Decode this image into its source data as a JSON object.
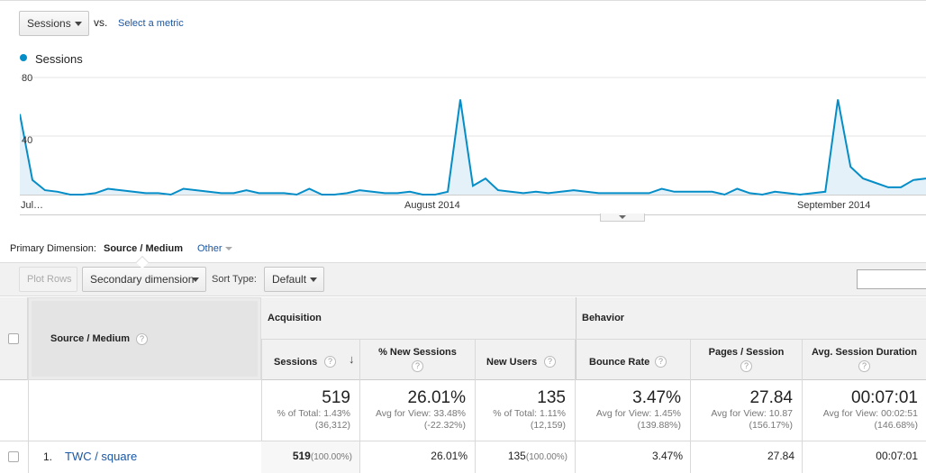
{
  "controls": {
    "metric_select": "Sessions",
    "vs_label": "vs.",
    "select_metric_link": "Select a metric"
  },
  "legend": {
    "series_label": "Sessions",
    "color": "#058dc7"
  },
  "chart_data": {
    "type": "area",
    "series": [
      {
        "name": "Sessions",
        "color": "#058dc7"
      }
    ],
    "y_ticks": [
      "80",
      "40"
    ],
    "ylim": [
      0,
      80
    ],
    "x_labels": [
      "Jul…",
      "August 2014",
      "September 2014"
    ],
    "values": [
      55,
      10,
      3,
      2,
      0,
      0,
      1,
      4,
      3,
      2,
      1,
      1,
      0,
      4,
      3,
      2,
      1,
      1,
      3,
      1,
      1,
      1,
      0,
      4,
      0,
      0,
      1,
      3,
      2,
      1,
      1,
      2,
      0,
      0,
      2,
      65,
      6,
      11,
      3,
      2,
      1,
      2,
      1,
      2,
      3,
      2,
      1,
      1,
      1,
      1,
      1,
      4,
      2,
      2,
      2,
      2,
      0,
      4,
      1,
      0,
      2,
      1,
      0,
      1,
      2,
      65,
      19,
      11,
      8,
      5,
      5,
      10,
      11
    ]
  },
  "primary_dimension": {
    "label": "Primary Dimension:",
    "value": "Source / Medium",
    "other": "Other"
  },
  "toolbar": {
    "plot_rows": "Plot Rows",
    "secondary_dimension": "Secondary dimension",
    "sort_type_label": "Sort Type:",
    "sort_type_value": "Default"
  },
  "table": {
    "dimension_header": "Source / Medium",
    "group_acquisition": "Acquisition",
    "group_behavior": "Behavior",
    "columns": [
      "Sessions",
      "% New Sessions",
      "New Users",
      "Bounce Rate",
      "Pages / Session",
      "Avg. Session Duration"
    ],
    "totals": [
      {
        "value": "519",
        "sub1": "% of Total: 1.43%",
        "sub2": "(36,312)"
      },
      {
        "value": "26.01%",
        "sub1": "Avg for View: 33.48%",
        "sub2": "(-22.32%)"
      },
      {
        "value": "135",
        "sub1": "% of Total: 1.11%",
        "sub2": "(12,159)"
      },
      {
        "value": "3.47%",
        "sub1": "Avg for View: 1.45%",
        "sub2": "(139.88%)"
      },
      {
        "value": "27.84",
        "sub1": "Avg for View: 10.87",
        "sub2": "(156.17%)"
      },
      {
        "value": "00:07:01",
        "sub1": "Avg for View: 00:02:51",
        "sub2": "(146.68%)"
      }
    ],
    "row": {
      "index": "1.",
      "dimension": "TWC / square",
      "sessions": "519",
      "sessions_pct": "(100.00%)",
      "new_sessions": "26.01%",
      "new_users": "135",
      "new_users_pct": "(100.00%)",
      "bounce_rate": "3.47%",
      "pages_session": "27.84",
      "avg_duration": "00:07:01"
    }
  }
}
